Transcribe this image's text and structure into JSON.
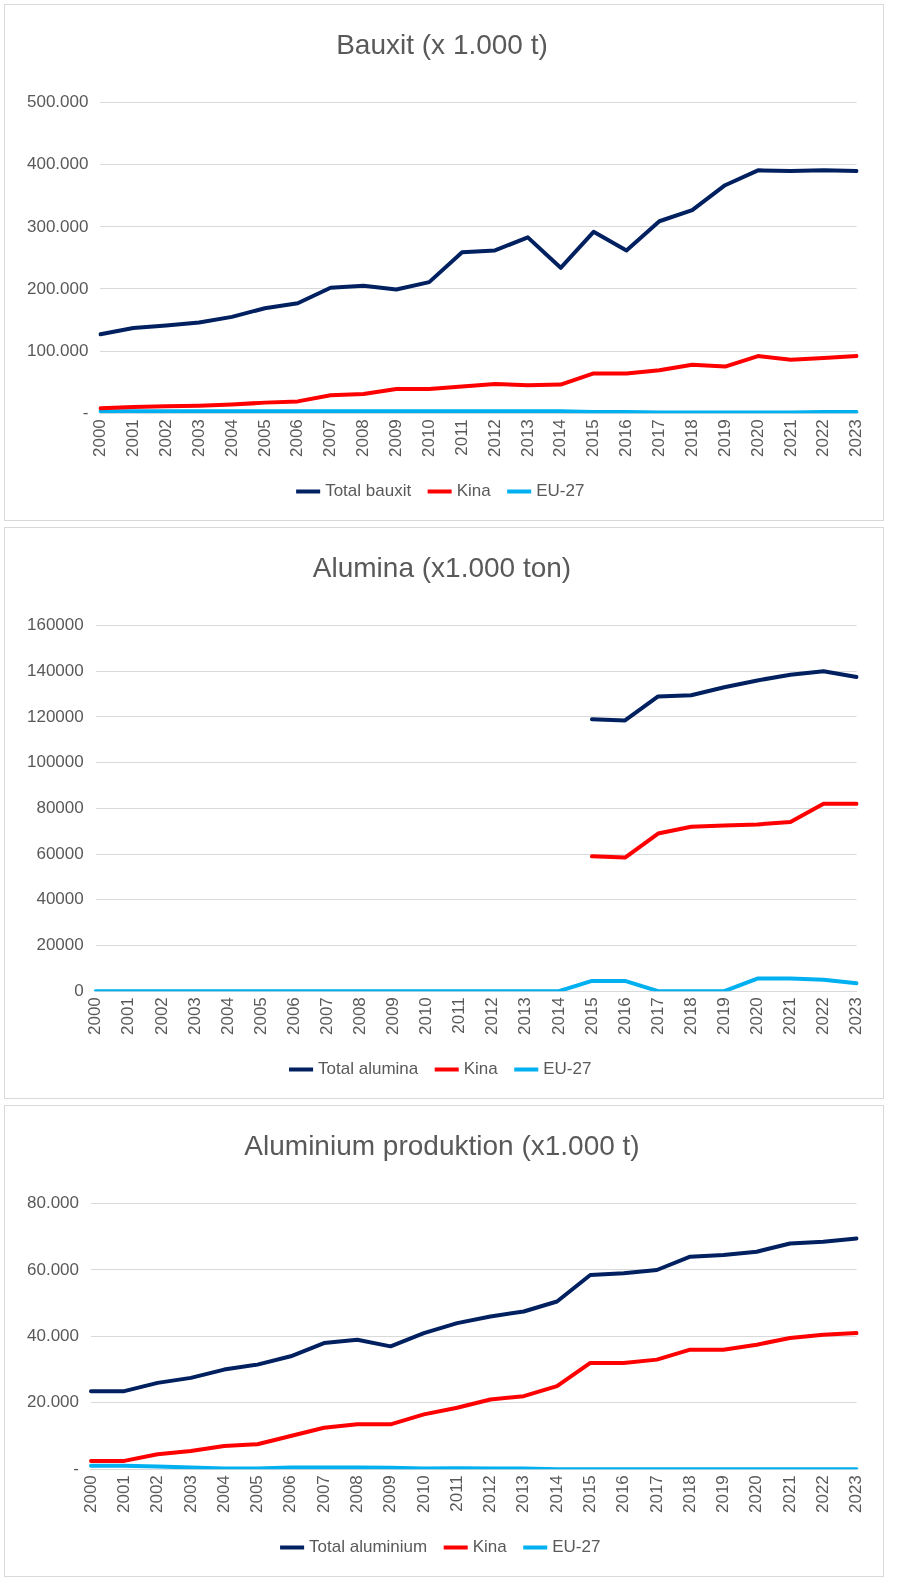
{
  "chart_data": [
    {
      "type": "line",
      "title": "Bauxit (x 1.000 t)",
      "categories": [
        "2000",
        "2001",
        "2002",
        "2003",
        "2004",
        "2005",
        "2006",
        "2007",
        "2008",
        "2009",
        "2010",
        "2011",
        "2012",
        "2013",
        "2014",
        "2015",
        "2016",
        "2017",
        "2018",
        "2019",
        "2020",
        "2021",
        "2022",
        "2023"
      ],
      "series": [
        {
          "name": "Total bauxit",
          "color": "#002060",
          "values": [
            127000,
            137000,
            141000,
            146000,
            155000,
            169000,
            177000,
            202000,
            205000,
            199000,
            211000,
            259000,
            262000,
            283000,
            234000,
            292000,
            262000,
            309000,
            327000,
            367000,
            391000,
            390000,
            391000,
            390000
          ]
        },
        {
          "name": "Kina",
          "color": "#ff0000",
          "values": [
            8000,
            10000,
            11000,
            12000,
            14000,
            17000,
            19000,
            29000,
            31000,
            39000,
            39000,
            43000,
            47000,
            45000,
            46000,
            64000,
            64000,
            69000,
            78000,
            75000,
            92000,
            86000,
            89000,
            92000
          ]
        },
        {
          "name": "EU-27",
          "color": "#00b0f0",
          "values": [
            3000,
            3000,
            3000,
            3000,
            3000,
            3000,
            3000,
            3000,
            3000,
            3000,
            3000,
            3000,
            3000,
            3000,
            3000,
            2000,
            2000,
            1000,
            1000,
            1000,
            1000,
            1000,
            2000,
            2000
          ]
        }
      ],
      "ylim": [
        0,
        500000
      ],
      "yticks": [
        {
          "value": 0,
          "label": "-"
        },
        {
          "value": 100000,
          "label": "100.000"
        },
        {
          "value": 200000,
          "label": "200.000"
        },
        {
          "value": 300000,
          "label": "300.000"
        },
        {
          "value": 400000,
          "label": "400.000"
        },
        {
          "value": 500000,
          "label": "500.000"
        }
      ],
      "grid": "y",
      "legend": "bottom",
      "marker": "none"
    },
    {
      "type": "line",
      "title": "Alumina (x1.000 ton)",
      "categories": [
        "2000",
        "2001",
        "2002",
        "2003",
        "2004",
        "2005",
        "2006",
        "2007",
        "2008",
        "2009",
        "2010",
        "2011",
        "2012",
        "2013",
        "2014",
        "2015",
        "2016",
        "2017",
        "2018",
        "2019",
        "2020",
        "2021",
        "2022",
        "2023"
      ],
      "series": [
        {
          "name": "Total alumina",
          "color": "#002060",
          "values": [
            null,
            null,
            null,
            null,
            null,
            null,
            null,
            null,
            null,
            null,
            null,
            null,
            null,
            null,
            null,
            119000,
            118500,
            129000,
            129500,
            133000,
            136000,
            138500,
            140000,
            137500
          ]
        },
        {
          "name": "Kina",
          "color": "#ff0000",
          "values": [
            null,
            null,
            null,
            null,
            null,
            null,
            null,
            null,
            null,
            null,
            null,
            null,
            null,
            null,
            null,
            59000,
            58500,
            69000,
            72000,
            72500,
            73000,
            74000,
            82000,
            82000
          ]
        },
        {
          "name": "EU-27",
          "color": "#00b0f0",
          "values": [
            0,
            0,
            0,
            0,
            0,
            0,
            0,
            0,
            0,
            0,
            0,
            0,
            0,
            0,
            0,
            4500,
            4500,
            0,
            0,
            0,
            5500,
            5500,
            5000,
            3500
          ]
        }
      ],
      "ylim": [
        0,
        160000
      ],
      "yticks": [
        0,
        20000,
        40000,
        60000,
        80000,
        100000,
        120000,
        140000,
        160000
      ],
      "grid": "y",
      "legend": "bottom",
      "marker": "none"
    },
    {
      "type": "line",
      "title": "Aluminium produktion (x1.000 t)",
      "categories": [
        "2000",
        "2001",
        "2002",
        "2003",
        "2004",
        "2005",
        "2006",
        "2007",
        "2008",
        "2009",
        "2010",
        "2011",
        "2012",
        "2013",
        "2014",
        "2015",
        "2016",
        "2017",
        "2018",
        "2019",
        "2020",
        "2021",
        "2022",
        "2023"
      ],
      "series": [
        {
          "name": "Total aluminium",
          "color": "#002060",
          "values": [
            23500,
            23500,
            26000,
            27500,
            30000,
            31500,
            34000,
            38000,
            39000,
            37000,
            41000,
            44000,
            46000,
            47500,
            50500,
            58500,
            59000,
            60000,
            64000,
            64500,
            65500,
            68000,
            68500,
            69500
          ]
        },
        {
          "name": "Kina",
          "color": "#ff0000",
          "values": [
            2500,
            2500,
            4500,
            5500,
            7000,
            7500,
            10000,
            12500,
            13500,
            13500,
            16500,
            18500,
            21000,
            22000,
            25000,
            32000,
            32000,
            33000,
            36000,
            36000,
            37500,
            39500,
            40500,
            41000
          ]
        },
        {
          "name": "EU-27",
          "color": "#00b0f0",
          "values": [
            1000,
            1000,
            800,
            500,
            200,
            200,
            500,
            500,
            500,
            400,
            200,
            300,
            200,
            200,
            0,
            0,
            0,
            0,
            0,
            0,
            0,
            0,
            0,
            0
          ]
        }
      ],
      "ylim": [
        0,
        80000
      ],
      "yticks": [
        {
          "value": 0,
          "label": "-"
        },
        {
          "value": 20000,
          "label": "20.000"
        },
        {
          "value": 40000,
          "label": "40.000"
        },
        {
          "value": 60000,
          "label": "60.000"
        },
        {
          "value": 80000,
          "label": "80.000"
        }
      ],
      "grid": "y",
      "legend": "bottom",
      "marker": "none"
    }
  ]
}
